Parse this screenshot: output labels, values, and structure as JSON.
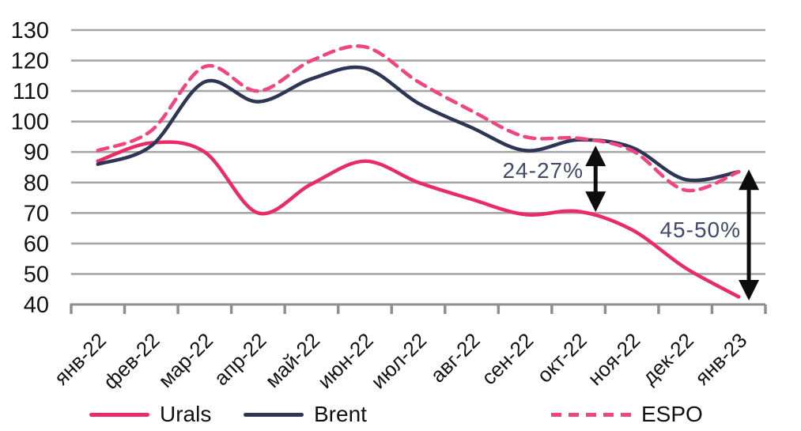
{
  "chart_data": {
    "type": "line",
    "categories": [
      "янв-22",
      "фев-22",
      "мар-22",
      "апр-22",
      "май-22",
      "июн-22",
      "июл-22",
      "авг-22",
      "сен-22",
      "окт-22",
      "ноя-22",
      "дек-22",
      "янв-23"
    ],
    "series": [
      {
        "name": "Urals",
        "color": "#e92b66",
        "dash": "solid",
        "values": [
          87,
          93,
          90,
          70,
          79.5,
          87,
          80,
          74.5,
          69.5,
          70.5,
          64.5,
          52,
          42.5
        ]
      },
      {
        "name": "Brent",
        "color": "#2d3654",
        "dash": "solid",
        "values": [
          86,
          92,
          113,
          106.5,
          114,
          117.5,
          106,
          98,
          90.5,
          94,
          91.5,
          81,
          83.5
        ]
      },
      {
        "name": "ESPO",
        "color": "#f04580",
        "dash": "dashed",
        "values": [
          90.5,
          97,
          118,
          110,
          120,
          124.5,
          113,
          103.5,
          95,
          94.5,
          90.5,
          77.5,
          83.5
        ]
      }
    ],
    "ylim": [
      40,
      130
    ],
    "ytick_step": 10,
    "yticks": [
      40,
      50,
      60,
      70,
      80,
      90,
      100,
      110,
      120,
      130
    ],
    "grid": true,
    "legend_position": "bottom",
    "annotations": [
      {
        "text": "24-27%",
        "arrow": {
          "month_index": 9.32,
          "value_top": 92.1,
          "value_bottom": 70.3
        }
      },
      {
        "text": "45-50%",
        "arrow": {
          "month_index": 12.19,
          "value_top": 84.3,
          "value_bottom": 41.3
        }
      }
    ]
  },
  "colors": {
    "grid": "#a6a6a6",
    "axis": "#8f8f8f",
    "tick_label": "#121212",
    "annotation": "#414b69",
    "arrow": "#0d0d0d"
  }
}
